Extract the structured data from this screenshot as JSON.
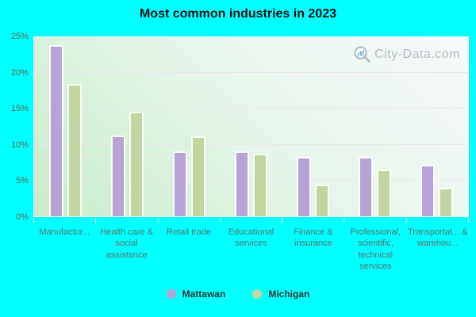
{
  "title": "Most common industries in 2023",
  "watermark": {
    "text": "City-Data.com"
  },
  "colors": {
    "page_background": "#00ffff",
    "title_text": "#111111",
    "mattawan_bar": "#b7a3d6",
    "michigan_bar": "#c2d4a0",
    "plot_gradient_top_right": "#f7fafb",
    "plot_gradient_bottom_left": "#c8ecca",
    "gridline": "#ebe2f0",
    "y_tick_text": "#5e6259",
    "x_tick_text": "#5a7070",
    "legend_text": "#333333",
    "watermark_text": "#b2bdc5"
  },
  "chart_data": {
    "type": "bar",
    "title": "Most common industries in 2023",
    "categories": [
      "Manufactur...",
      "Health care & social assistance",
      "Retail trade",
      "Educational services",
      "Finance & insurance",
      "Professional, scientific, technical services",
      "Transportat... & warehou..."
    ],
    "series": [
      {
        "name": "Mattawan",
        "color": "#b7a3d6",
        "values": [
          23.7,
          11.1,
          8.8,
          8.8,
          8.1,
          8.1,
          7.0
        ]
      },
      {
        "name": "Michigan",
        "color": "#c2d4a0",
        "values": [
          18.2,
          14.4,
          10.9,
          8.5,
          4.2,
          6.3,
          3.8
        ]
      }
    ],
    "xlabel": "",
    "ylabel": "",
    "ylim": [
      0,
      25
    ],
    "yticks": [
      "0%",
      "5%",
      "10%",
      "15%",
      "20%",
      "25%"
    ],
    "grid": true,
    "legend_position": "bottom"
  }
}
